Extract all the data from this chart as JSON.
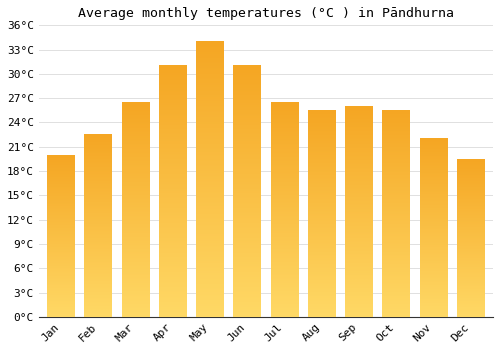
{
  "title": "Average monthly temperatures (°C ) in Pāndhurna",
  "months": [
    "Jan",
    "Feb",
    "Mar",
    "Apr",
    "May",
    "Jun",
    "Jul",
    "Aug",
    "Sep",
    "Oct",
    "Nov",
    "Dec"
  ],
  "values": [
    20.0,
    22.5,
    26.5,
    31.0,
    34.0,
    31.0,
    26.5,
    25.5,
    26.0,
    25.5,
    22.0,
    19.5
  ],
  "bar_color_top": "#F5A623",
  "bar_color_bottom": "#FFD966",
  "ylim": [
    0,
    36
  ],
  "yticks": [
    0,
    3,
    6,
    9,
    12,
    15,
    18,
    21,
    24,
    27,
    30,
    33,
    36
  ],
  "ytick_labels": [
    "0°C",
    "3°C",
    "6°C",
    "9°C",
    "12°C",
    "15°C",
    "18°C",
    "21°C",
    "24°C",
    "27°C",
    "30°C",
    "33°C",
    "36°C"
  ],
  "background_color": "#ffffff",
  "grid_color": "#e0e0e0",
  "title_fontsize": 9.5,
  "tick_fontsize": 8,
  "bar_width": 0.75
}
